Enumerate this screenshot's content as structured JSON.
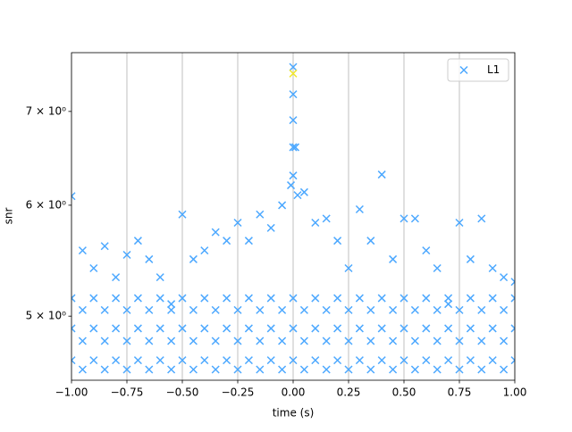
{
  "chart_data": {
    "type": "scatter",
    "xlabel": "time (s)",
    "ylabel": "snr",
    "yscale": "log",
    "grid": "x",
    "legend": "upper right",
    "xlim": [
      -1,
      1
    ],
    "ylim": [
      4.5,
      7.71
    ],
    "xticks": [
      {
        "value": -1,
        "label": "−1.00"
      },
      {
        "value": -0.75,
        "label": "−0.75"
      },
      {
        "value": -0.5,
        "label": "−0.50"
      },
      {
        "value": -0.25,
        "label": "−0.25"
      },
      {
        "value": 0,
        "label": "0.00"
      },
      {
        "value": 0.25,
        "label": "0.25"
      },
      {
        "value": 0.5,
        "label": "0.50"
      },
      {
        "value": 0.75,
        "label": "0.75"
      },
      {
        "value": 1,
        "label": "1.00"
      }
    ],
    "yticks": [
      {
        "value": 5,
        "label": "5 × 10⁰"
      },
      {
        "value": 6,
        "label": "6 × 10⁰"
      },
      {
        "value": 7,
        "label": "7 × 10⁰"
      }
    ],
    "x": [
      -1,
      -0.95,
      -0.9,
      -0.85,
      -0.8,
      -0.75,
      -0.7,
      -0.65,
      -0.6,
      -0.55,
      -0.5,
      -0.45,
      -0.4,
      -0.35,
      -0.3,
      -0.25,
      -0.2,
      -0.15,
      -0.1,
      -0.05,
      0,
      0.05,
      0.1,
      0.15,
      0.2,
      0.25,
      0.3,
      0.35,
      0.4,
      0.45,
      0.5,
      0.55,
      0.6,
      0.65,
      0.7,
      0.75,
      0.8,
      0.85,
      0.9,
      0.95,
      1,
      -1,
      -0.95,
      -0.9,
      -0.85,
      -0.8,
      -0.75,
      -0.7,
      -0.65,
      -0.6,
      -0.55,
      -0.5,
      -0.45,
      -0.4,
      -0.35,
      -0.3,
      -0.25,
      -0.2,
      -0.15,
      -0.1,
      -0.05,
      0,
      0.05,
      0.1,
      0.15,
      0.2,
      0.25,
      0.3,
      0.35,
      0.4,
      0.45,
      0.5,
      0.55,
      0.6,
      0.65,
      0.7,
      0.75,
      0.8,
      0.85,
      0.9,
      0.95,
      1,
      -1,
      -0.95,
      -0.9,
      -0.85,
      -0.8,
      -0.75,
      -0.7,
      -0.65,
      -0.6,
      -0.55,
      -0.5,
      -0.45,
      -0.4,
      -0.35,
      -0.3,
      -0.25,
      -0.2,
      -0.15,
      -0.1,
      -0.05,
      0,
      0.05,
      0.1,
      0.15,
      0.2,
      0.25,
      0.3,
      0.35,
      0.4,
      0.45,
      0.5,
      0.55,
      0.6,
      0.65,
      0.7,
      0.75,
      0.8,
      0.85,
      0.9,
      0.95,
      1,
      -1,
      -0.95,
      -0.9,
      -0.85,
      -0.8,
      -0.75,
      -0.7,
      -0.65,
      -0.6,
      -0.55,
      -0.5,
      -0.45,
      -0.4,
      -0.35,
      -0.3,
      -0.25,
      -0.2,
      -0.15,
      -0.1,
      -0.05,
      0,
      0.05,
      0.1,
      0.15,
      0.2,
      0.25,
      0.3,
      0.35,
      0.4,
      0.45,
      0.5,
      0.55,
      0.6,
      0.65,
      0.7,
      0.75,
      0.8,
      0.85,
      0.9,
      0.95,
      1,
      0,
      0,
      0,
      0,
      0.01,
      -0.01,
      0.02
    ],
    "series": [
      {
        "name": "L1",
        "color": "#4ca8ff",
        "values": [
          6.09,
          5.57,
          5.41,
          5.61,
          5.33,
          5.53,
          5.66,
          5.49,
          5.33,
          5.1,
          5.91,
          5.49,
          5.57,
          5.74,
          5.66,
          5.83,
          5.66,
          5.91,
          5.78,
          6.0,
          7.53,
          6.13,
          5.83,
          5.87,
          5.66,
          5.41,
          5.96,
          5.66,
          6.31,
          5.49,
          5.87,
          5.87,
          5.57,
          5.41,
          5.1,
          5.83,
          5.49,
          5.87,
          5.41,
          5.33,
          5.29,
          5.15,
          5.05,
          5.15,
          5.05,
          5.15,
          5.05,
          5.15,
          5.05,
          5.15,
          5.05,
          5.15,
          5.05,
          5.15,
          5.05,
          5.15,
          5.05,
          5.15,
          5.05,
          5.15,
          5.05,
          5.15,
          5.05,
          5.15,
          5.05,
          5.15,
          5.05,
          5.15,
          5.05,
          5.15,
          5.05,
          5.15,
          5.05,
          5.15,
          5.05,
          5.15,
          5.05,
          5.15,
          5.05,
          5.15,
          5.05,
          5.15,
          4.9,
          4.8,
          4.9,
          4.8,
          4.9,
          4.8,
          4.9,
          4.8,
          4.9,
          4.8,
          4.9,
          4.8,
          4.9,
          4.8,
          4.9,
          4.8,
          4.9,
          4.8,
          4.9,
          4.8,
          4.9,
          4.8,
          4.9,
          4.8,
          4.9,
          4.8,
          4.9,
          4.8,
          4.9,
          4.8,
          4.9,
          4.8,
          4.9,
          4.8,
          4.9,
          4.8,
          4.9,
          4.8,
          4.9,
          4.8,
          4.9,
          4.65,
          4.58,
          4.65,
          4.58,
          4.65,
          4.58,
          4.65,
          4.58,
          4.65,
          4.58,
          4.65,
          4.58,
          4.65,
          4.58,
          4.65,
          4.58,
          4.65,
          4.58,
          4.65,
          4.58,
          4.65,
          4.58,
          4.65,
          4.58,
          4.65,
          4.58,
          4.65,
          4.58,
          4.65,
          4.58,
          4.65,
          4.58,
          4.65,
          4.58,
          4.65,
          4.58,
          4.65,
          4.58,
          4.65,
          4.58,
          4.65,
          7.2,
          6.9,
          6.6,
          6.3,
          6.6,
          6.2,
          6.1
        ]
      }
    ],
    "highlight": {
      "x": 0,
      "y": 7.45,
      "color": "#f2e82a"
    }
  }
}
